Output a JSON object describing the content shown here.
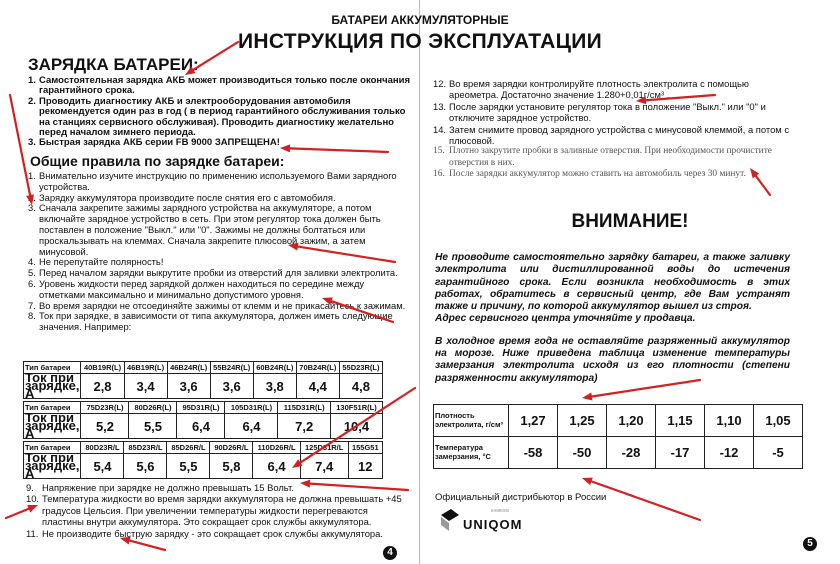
{
  "header": {
    "subtitle": "БАТАРЕИ АККУМУЛЯТОРНЫЕ",
    "title": "ИНСТРУКЦИЯ ПО ЭКСПЛУАТАЦИИ"
  },
  "charging": {
    "heading": "ЗАРЯДКА БАТАРЕИ:",
    "items": [
      "Самостоятельная зарядка АКБ может производиться только после окончания гарантийного срока.",
      "Проводить диагностику АКБ и электрооборудования автомобиля рекомендуется один раз в год ( в период гарантийного обслуживания только на станциях сервисного обслуживая). Проводить диагностику желательно перед началом зимнего периода.",
      "Быстрая зарядка АКБ серии FB 9000 ЗАПРЕЩЕНА!"
    ]
  },
  "rules": {
    "heading": "Общие правила по зарядке батареи:",
    "items": [
      "Внимательно изучите инструкцию по применению используемого Вами зарядного устройства.",
      "Зарядку аккумулятора производите после снятия его с автомобиля.",
      "Сначала закрепите зажимы зарядного устройства на аккумуляторе, а потом включайте зарядное устройство в сеть. При этом регулятор тока должен быть поставлен в положение \"Выкл.\" или \"0\". Зажимы не должны болтаться или проскальзывать на клеммах. Сначала закрепите плюсовой зажим, а затем минусовой.",
      "Не перепутайте полярность!",
      "Перед началом зарядки выкрутите пробки из отверстий для заливки электролита.",
      "Уровень жидкости перед зарядкой должен находиться по середине между отметками максимально и минимально допустимого уровня.",
      "Во время зарядки не отсоединяйте зажимы от клемм и не прикасайтесь к зажимам.",
      "Ток при зарядке, в зависимости от типа аккумулятора, должен иметь следующие значения. Например:"
    ],
    "items_after": [
      "Напряжение при зарядке не должно превышать 15 Вольт.",
      "Температура жидкости во время зарядки аккумулятора не должна превышать +45 градусов Цельсия. При увеличении температуры жидкости перегреваются пластины внутри аккумулятора. Это сокращает срок службы аккумулятора.",
      "Не производите быструю зарядку - это сокращает срок службы аккумулятора."
    ],
    "items_right": [
      "Во время зарядки контролируйте плотность электролита с помощью ареометра. Достаточно значение 1.280+0,01г/см³ .",
      "После зарядки установите регулятор тока в положение \"Выкл.\" или \"0\" и отключите зарядное устройство.",
      "Затем снимите провод зарядного устройства с минусовой клеммой, а потом с плюсовой.",
      "Плотно закрутите пробки в заливные отверстия. При необходимости прочистите отверстия в них.",
      "После зарядки аккумулятор можно ставить на автомобиль через 30 минут."
    ]
  },
  "current_table": {
    "type_label": "Тип батареи",
    "current_label": "Ток при зарядке, А",
    "blocks": [
      {
        "types": [
          "40B19R(L)",
          "46B19R(L)",
          "46B24R(L)",
          "55B24R(L)",
          "60B24R(L)",
          "70B24R(L)",
          "55D23R(L)"
        ],
        "values": [
          "2,8",
          "3,4",
          "3,6",
          "3,6",
          "3,8",
          "4,4",
          "4,8"
        ]
      },
      {
        "types": [
          "75D23R(L)",
          "80D26R(L)",
          "95D31R(L)",
          "105D31R(L)",
          "115D31R(L)",
          "130F51R(L)"
        ],
        "values": [
          "5,2",
          "5,5",
          "6,4",
          "6,4",
          "7,2",
          "10,4"
        ]
      },
      {
        "types": [
          "80D23R/L",
          "85D23R/L",
          "85D26R/L",
          "90D26R/L",
          "110D26R/L",
          "125D31R/L",
          "155G51"
        ],
        "values": [
          "5,4",
          "5,6",
          "5,5",
          "5,8",
          "6,4",
          "7,4",
          "12"
        ]
      }
    ]
  },
  "warning": {
    "heading": "ВНИМАНИЕ!",
    "p1": "Не проводите самостоятельно зарядку батареи, а также заливку электролита или дистиллированной воды до истечения гарантийного срока. Если возникла необходимость в этих работах, обратитесь в сервисный центр, где Вам устранят также и причину, по которой аккумулятор вышел из строя.",
    "p2": "Адрес сервисного центра уточняйте у продавца.",
    "p3": "В холодное время года не оставляйте разряженный аккумулятор на морозе. Ниже приведена таблица изменение температуры замерзания электролита исходя из его плотности (степени разряженности аккумулятора)"
  },
  "freeze_table": {
    "density_label": "Плотность электролита, г/см³",
    "temp_label": "Температура замерзания, °С",
    "density": [
      "1,27",
      "1,25",
      "1,20",
      "1,15",
      "1,10",
      "1,05"
    ],
    "temp": [
      "-58",
      "-50",
      "-28",
      "-17",
      "-12",
      "-5"
    ]
  },
  "footer": {
    "distributor": "Официальный дистрибьютор в России",
    "logo_text": "UNIQOM",
    "logo_small": "юником",
    "page_left": "4",
    "page_right": "5"
  },
  "colors": {
    "arrow": "#d42020"
  }
}
